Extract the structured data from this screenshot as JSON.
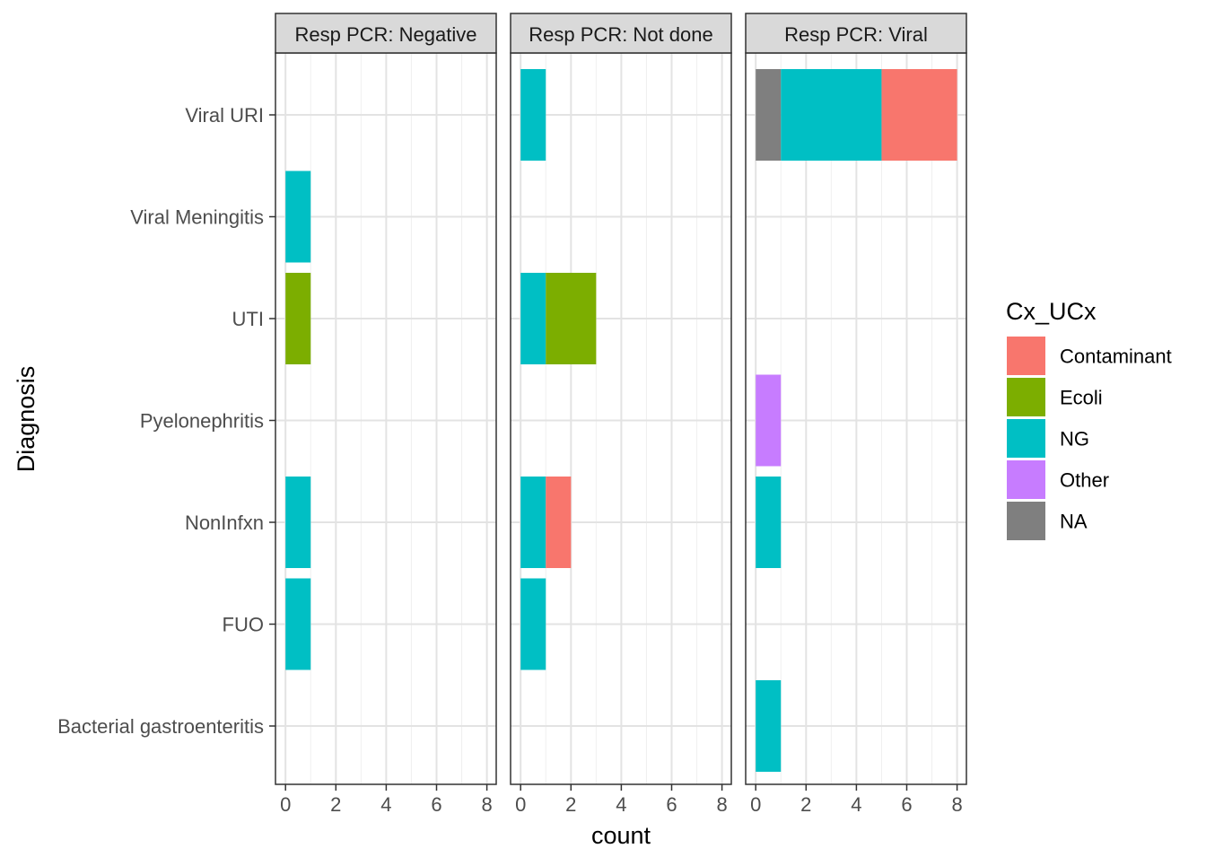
{
  "chart_data": {
    "type": "bar",
    "orientation": "horizontal",
    "stacked": true,
    "xlabel": "count",
    "ylabel": "Diagnosis",
    "xlim": [
      0,
      8
    ],
    "x_ticks": [
      "0",
      "2",
      "4",
      "6",
      "8"
    ],
    "categories": [
      "Viral URI",
      "Viral Meningitis",
      "UTI",
      "Pyelonephritis",
      "NonInfxn",
      "FUO",
      "Bacterial gastroenteritis"
    ],
    "grid": true,
    "facets": [
      {
        "label": "Resp PCR: Negative",
        "bars": [
          {
            "category": "Viral Meningitis",
            "segments": [
              {
                "series": "NG",
                "value": 1
              }
            ]
          },
          {
            "category": "UTI",
            "segments": [
              {
                "series": "Ecoli",
                "value": 1
              }
            ]
          },
          {
            "category": "NonInfxn",
            "segments": [
              {
                "series": "NG",
                "value": 1
              }
            ]
          },
          {
            "category": "FUO",
            "segments": [
              {
                "series": "NG",
                "value": 1
              }
            ]
          }
        ]
      },
      {
        "label": "Resp PCR: Not done",
        "bars": [
          {
            "category": "Viral URI",
            "segments": [
              {
                "series": "NG",
                "value": 1
              }
            ]
          },
          {
            "category": "UTI",
            "segments": [
              {
                "series": "NG",
                "value": 1
              },
              {
                "series": "Ecoli",
                "value": 2
              }
            ]
          },
          {
            "category": "NonInfxn",
            "segments": [
              {
                "series": "NG",
                "value": 1
              },
              {
                "series": "Contaminant",
                "value": 1
              }
            ]
          },
          {
            "category": "FUO",
            "segments": [
              {
                "series": "NG",
                "value": 1
              }
            ]
          }
        ]
      },
      {
        "label": "Resp PCR: Viral",
        "bars": [
          {
            "category": "Viral URI",
            "segments": [
              {
                "series": "NA",
                "value": 1
              },
              {
                "series": "NG",
                "value": 4
              },
              {
                "series": "Contaminant",
                "value": 3
              }
            ]
          },
          {
            "category": "Pyelonephritis",
            "segments": [
              {
                "series": "Other",
                "value": 1
              }
            ]
          },
          {
            "category": "NonInfxn",
            "segments": [
              {
                "series": "NG",
                "value": 1
              }
            ]
          },
          {
            "category": "Bacterial gastroenteritis",
            "segments": [
              {
                "series": "NG",
                "value": 1
              }
            ]
          }
        ]
      }
    ],
    "legend": {
      "title": "Cx_UCx",
      "position": "right",
      "items": [
        {
          "name": "Contaminant",
          "color": "#F8766D"
        },
        {
          "name": "Ecoli",
          "color": "#7CAE00"
        },
        {
          "name": "NG",
          "color": "#00BFC4"
        },
        {
          "name": "Other",
          "color": "#C77CFF"
        },
        {
          "name": "NA",
          "color": "#7F7F7F"
        }
      ]
    }
  }
}
